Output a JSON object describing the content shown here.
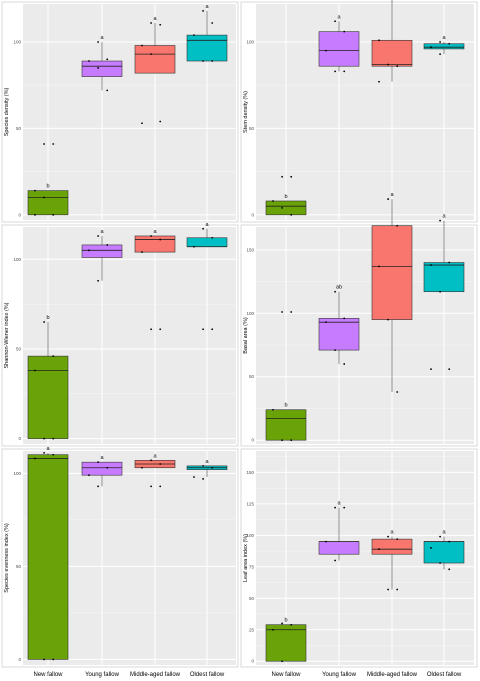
{
  "figure": {
    "categories": [
      "New fallow",
      "Young fallow",
      "Middle-aged fallow",
      "Oldest fallow"
    ],
    "colors": [
      "#6aa307",
      "#c77cff",
      "#f8766d",
      "#00bfc4"
    ]
  },
  "chart_data": [
    {
      "type": "box",
      "id": "species-density",
      "ylabel": "Species density (%)",
      "ylim": [
        -3,
        122
      ],
      "yticks": [
        0,
        50,
        100
      ],
      "categories": [
        "New fallow",
        "Young fallow",
        "Middle-aged fallow",
        "Oldest fallow"
      ],
      "boxes": [
        {
          "q1": 0,
          "median": 10,
          "q3": 14,
          "whisker_low": 0,
          "whisker_high": 14,
          "sig": "b"
        },
        {
          "q1": 80,
          "median": 86,
          "q3": 89,
          "whisker_low": 72,
          "whisker_high": 100,
          "sig": "a"
        },
        {
          "q1": 82,
          "median": 93,
          "q3": 98,
          "whisker_low": 82,
          "whisker_high": 111,
          "sig": "a"
        },
        {
          "q1": 89,
          "median": 101,
          "q3": 104,
          "whisker_low": 89,
          "whisker_high": 118,
          "sig": "a"
        }
      ],
      "points": [
        [
          0,
          41
        ],
        [
          0,
          41
        ],
        [
          0,
          14
        ],
        [
          0,
          10
        ],
        [
          0,
          0
        ],
        [
          0,
          0
        ],
        [
          1,
          100
        ],
        [
          1,
          90
        ],
        [
          1,
          89
        ],
        [
          1,
          85
        ],
        [
          1,
          72
        ],
        [
          2,
          111
        ],
        [
          2,
          110
        ],
        [
          2,
          98
        ],
        [
          2,
          93
        ],
        [
          2,
          54
        ],
        [
          2,
          53
        ],
        [
          3,
          118
        ],
        [
          3,
          111
        ],
        [
          3,
          104
        ],
        [
          3,
          89
        ],
        [
          3,
          89
        ]
      ]
    },
    {
      "type": "box",
      "id": "stem-density",
      "ylabel": "Stem density (%)",
      "ylim": [
        -3,
        122
      ],
      "yticks": [
        0,
        50,
        100
      ],
      "categories": [
        "New fallow",
        "Young fallow",
        "Middle-aged fallow",
        "Oldest fallow"
      ],
      "boxes": [
        {
          "q1": 0,
          "median": 5,
          "q3": 8,
          "whisker_low": 0,
          "whisker_high": 8,
          "sig": "b"
        },
        {
          "q1": 86,
          "median": 95,
          "q3": 106,
          "whisker_low": 83,
          "whisker_high": 112,
          "sig": "a"
        },
        {
          "q1": 86,
          "median": 87,
          "q3": 101,
          "whisker_low": 77,
          "whisker_high": 125,
          "sig": "a"
        },
        {
          "q1": 96,
          "median": 97,
          "q3": 99,
          "whisker_low": 93,
          "whisker_high": 100,
          "sig": "a"
        }
      ],
      "points": [
        [
          0,
          22
        ],
        [
          0,
          22
        ],
        [
          0,
          8
        ],
        [
          0,
          4
        ],
        [
          0,
          0
        ],
        [
          1,
          112
        ],
        [
          1,
          106
        ],
        [
          1,
          95
        ],
        [
          1,
          83
        ],
        [
          1,
          83
        ],
        [
          2,
          125
        ],
        [
          2,
          125
        ],
        [
          2,
          101
        ],
        [
          2,
          87
        ],
        [
          2,
          86
        ],
        [
          2,
          77
        ],
        [
          3,
          100
        ],
        [
          3,
          99
        ],
        [
          3,
          97
        ],
        [
          3,
          93
        ]
      ]
    },
    {
      "type": "box",
      "id": "shannon-wiener",
      "ylabel": "Shannon-Wiener index (%)",
      "ylim": [
        -3,
        118
      ],
      "yticks": [
        0,
        50,
        100
      ],
      "categories": [
        "New fallow",
        "Young fallow",
        "Middle-aged fallow",
        "Oldest fallow"
      ],
      "boxes": [
        {
          "q1": 0,
          "median": 38,
          "q3": 46,
          "whisker_low": 0,
          "whisker_high": 65,
          "sig": "b"
        },
        {
          "q1": 101,
          "median": 105,
          "q3": 108,
          "whisker_low": 88,
          "whisker_high": 113,
          "sig": "a"
        },
        {
          "q1": 104,
          "median": 111,
          "q3": 113,
          "whisker_low": 104,
          "whisker_high": 113,
          "sig": "a"
        },
        {
          "q1": 107,
          "median": 107,
          "q3": 112,
          "whisker_low": 107,
          "whisker_high": 117,
          "sig": "a"
        }
      ],
      "points": [
        [
          0,
          65
        ],
        [
          0,
          46
        ],
        [
          0,
          38
        ],
        [
          0,
          0
        ],
        [
          0,
          0
        ],
        [
          1,
          113
        ],
        [
          1,
          108
        ],
        [
          1,
          105
        ],
        [
          1,
          88
        ],
        [
          2,
          113
        ],
        [
          2,
          111
        ],
        [
          2,
          104
        ],
        [
          2,
          61
        ],
        [
          2,
          61
        ],
        [
          3,
          117
        ],
        [
          3,
          112
        ],
        [
          3,
          107
        ],
        [
          3,
          61
        ],
        [
          3,
          61
        ]
      ]
    },
    {
      "type": "box",
      "id": "basal-area",
      "ylabel": "Basal area (%)",
      "ylim": [
        -3,
        168
      ],
      "yticks": [
        0,
        50,
        100,
        150
      ],
      "categories": [
        "New fallow",
        "Young fallow",
        "Middle-aged fallow",
        "Oldest fallow"
      ],
      "boxes": [
        {
          "q1": 0,
          "median": 17,
          "q3": 24,
          "whisker_low": 0,
          "whisker_high": 24,
          "sig": "b"
        },
        {
          "q1": 71,
          "median": 93,
          "q3": 96,
          "whisker_low": 60,
          "whisker_high": 117,
          "sig": "ab"
        },
        {
          "q1": 95,
          "median": 137,
          "q3": 169,
          "whisker_low": 38,
          "whisker_high": 190,
          "sig": "a"
        },
        {
          "q1": 117,
          "median": 138,
          "q3": 140,
          "whisker_low": 117,
          "whisker_high": 173,
          "sig": "a"
        }
      ],
      "points": [
        [
          0,
          101
        ],
        [
          0,
          101
        ],
        [
          0,
          24
        ],
        [
          0,
          0
        ],
        [
          0,
          0
        ],
        [
          1,
          117
        ],
        [
          1,
          96
        ],
        [
          1,
          93
        ],
        [
          1,
          71
        ],
        [
          1,
          60
        ],
        [
          2,
          190
        ],
        [
          2,
          169
        ],
        [
          2,
          137
        ],
        [
          2,
          95
        ],
        [
          2,
          38
        ],
        [
          3,
          173
        ],
        [
          3,
          140
        ],
        [
          3,
          138
        ],
        [
          3,
          117
        ],
        [
          3,
          56
        ],
        [
          3,
          56
        ]
      ]
    },
    {
      "type": "box",
      "id": "species-evenness",
      "ylabel": "Species evenness index (%)",
      "ylim": [
        -3,
        112
      ],
      "yticks": [
        0,
        50,
        100
      ],
      "categories": [
        "New fallow",
        "Young fallow",
        "Middle-aged fallow",
        "Oldest fallow"
      ],
      "boxes": [
        {
          "q1": 0,
          "median": 108,
          "q3": 110,
          "whisker_low": 0,
          "whisker_high": 111,
          "sig": "a"
        },
        {
          "q1": 99,
          "median": 103,
          "q3": 106,
          "whisker_low": 93,
          "whisker_high": 106,
          "sig": "a"
        },
        {
          "q1": 103,
          "median": 105,
          "q3": 107,
          "whisker_low": 103,
          "whisker_high": 107,
          "sig": "a"
        },
        {
          "q1": 102,
          "median": 103,
          "q3": 104,
          "whisker_low": 98,
          "whisker_high": 104,
          "sig": "a"
        }
      ],
      "points": [
        [
          0,
          111
        ],
        [
          0,
          110
        ],
        [
          0,
          108
        ],
        [
          0,
          0
        ],
        [
          0,
          0
        ],
        [
          1,
          106
        ],
        [
          1,
          103
        ],
        [
          1,
          99
        ],
        [
          1,
          93
        ],
        [
          2,
          107
        ],
        [
          2,
          105
        ],
        [
          2,
          103
        ],
        [
          2,
          93
        ],
        [
          2,
          93
        ],
        [
          3,
          104
        ],
        [
          3,
          103
        ],
        [
          3,
          98
        ],
        [
          3,
          97
        ]
      ]
    },
    {
      "type": "box",
      "id": "leaf-area",
      "ylabel": "Leaf area index (%)",
      "ylim": [
        -3,
        167
      ],
      "yticks": [
        0,
        25,
        50,
        75,
        100,
        125,
        150
      ],
      "categories": [
        "New fallow",
        "Young fallow",
        "Middle-aged fallow",
        "Oldest fallow"
      ],
      "boxes": [
        {
          "q1": 0,
          "median": 25,
          "q3": 29,
          "whisker_low": 0,
          "whisker_high": 29,
          "sig": "b"
        },
        {
          "q1": 85,
          "median": 95,
          "q3": 95,
          "whisker_low": 80,
          "whisker_high": 122,
          "sig": "a"
        },
        {
          "q1": 85,
          "median": 89,
          "q3": 97,
          "whisker_low": 57,
          "whisker_high": 99,
          "sig": "a"
        },
        {
          "q1": 78,
          "median": 95,
          "q3": 95,
          "whisker_low": 73,
          "whisker_high": 99,
          "sig": "a"
        }
      ],
      "points": [
        [
          0,
          30
        ],
        [
          0,
          29
        ],
        [
          0,
          25
        ],
        [
          0,
          0
        ],
        [
          1,
          122
        ],
        [
          1,
          122
        ],
        [
          1,
          95
        ],
        [
          1,
          80
        ],
        [
          2,
          99
        ],
        [
          2,
          97
        ],
        [
          2,
          89
        ],
        [
          2,
          57
        ],
        [
          2,
          57
        ],
        [
          3,
          99
        ],
        [
          3,
          95
        ],
        [
          3,
          90
        ],
        [
          3,
          78
        ],
        [
          3,
          73
        ]
      ]
    }
  ]
}
